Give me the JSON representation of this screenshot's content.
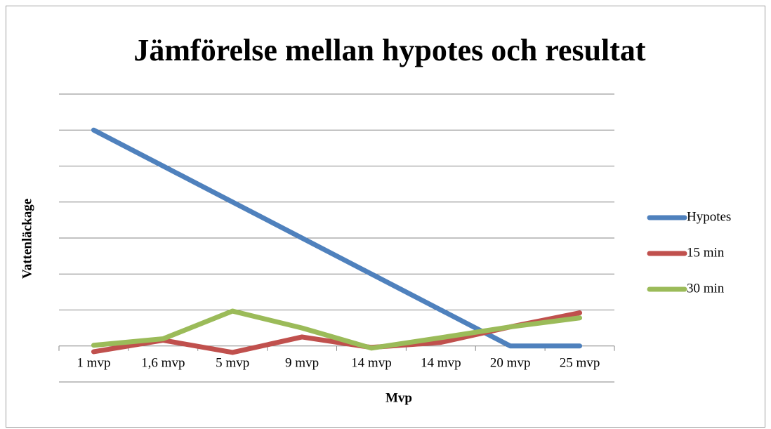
{
  "chart_data": {
    "type": "line",
    "title": "Jämförelse mellan hypotes och resultat",
    "x_label": "Mvp",
    "y_label": "Vattenläckage",
    "categories": [
      "1 mvp",
      "1,6 mvp",
      "5 mvp",
      "9 mvp",
      "14 mvp",
      "14 mvp",
      "20 mvp",
      "25 mvp"
    ],
    "series": [
      {
        "name": "Hypotes",
        "color": "#4f81bd",
        "values": [
          6,
          5,
          4,
          3,
          2,
          1,
          0,
          0
        ]
      },
      {
        "name": "15 min",
        "color": "#c0504d",
        "values": [
          -0.16,
          0.16,
          -0.18,
          0.25,
          -0.04,
          0.1,
          0.53,
          0.92
        ]
      },
      {
        "name": "30 min",
        "color": "#9bbb59",
        "values": [
          0.02,
          0.2,
          0.97,
          0.5,
          -0.06,
          0.23,
          0.53,
          0.78
        ]
      }
    ],
    "ylim": [
      -1,
      7
    ],
    "yticks": [
      -1,
      0,
      1,
      2,
      3,
      4,
      5,
      6,
      7
    ],
    "grid": true,
    "legend": "right"
  }
}
